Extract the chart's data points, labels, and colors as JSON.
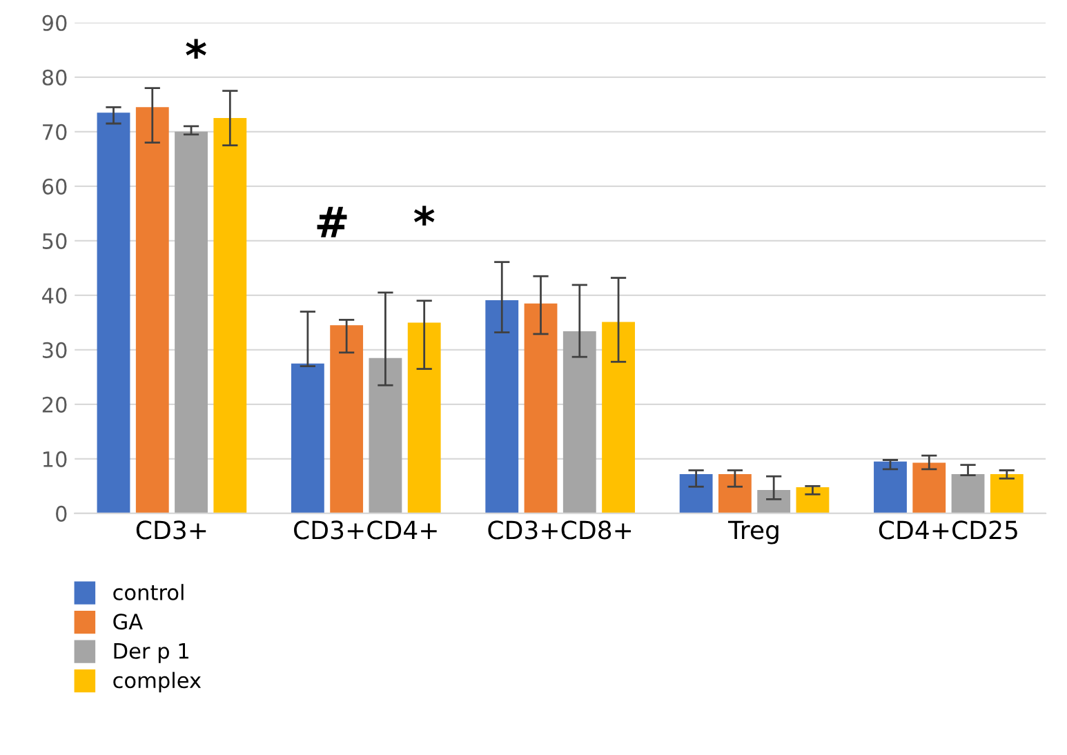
{
  "chart_data": {
    "type": "bar",
    "categories": [
      "CD3+",
      "CD3+CD4+",
      "CD3+CD8+",
      "Treg",
      "CD4+CD25"
    ],
    "series": [
      {
        "name": "control",
        "color": "#4472c4",
        "values": [
          73.5,
          27.5,
          39.1,
          7.2,
          9.5
        ],
        "errors": [
          [
            71.5,
            74.5
          ],
          [
            27,
            37
          ],
          [
            33.2,
            46.1
          ],
          [
            4.9,
            7.9
          ],
          [
            8.1,
            9.8
          ]
        ]
      },
      {
        "name": "GA",
        "color": "#ed7d31",
        "values": [
          74.5,
          34.5,
          38.5,
          7.2,
          9.3
        ],
        "errors": [
          [
            68,
            78
          ],
          [
            29.5,
            35.5
          ],
          [
            32.9,
            43.5
          ],
          [
            4.9,
            7.9
          ],
          [
            8.1,
            10.6
          ]
        ]
      },
      {
        "name": "Der p 1",
        "color": "#a5a5a5",
        "values": [
          70,
          28.5,
          33.4,
          4.3,
          7.2
        ],
        "errors": [
          [
            69.5,
            71
          ],
          [
            23.5,
            40.5
          ],
          [
            28.7,
            41.9
          ],
          [
            2.6,
            6.8
          ],
          [
            7.0,
            8.9
          ]
        ]
      },
      {
        "name": "complex",
        "color": "#ffc000",
        "values": [
          72.5,
          35,
          35.1,
          4.8,
          7.2
        ],
        "errors": [
          [
            67.5,
            77.5
          ],
          [
            26.5,
            39
          ],
          [
            27.8,
            43.2
          ],
          [
            3.5,
            5.0
          ],
          [
            6.4,
            7.9
          ]
        ]
      }
    ],
    "ylim": [
      0,
      90
    ],
    "yticks": [
      0,
      10,
      20,
      30,
      40,
      50,
      60,
      70,
      80,
      90
    ],
    "grid": "y",
    "legend": "bottom left",
    "annotations": [
      "*",
      "#",
      "*"
    ]
  }
}
